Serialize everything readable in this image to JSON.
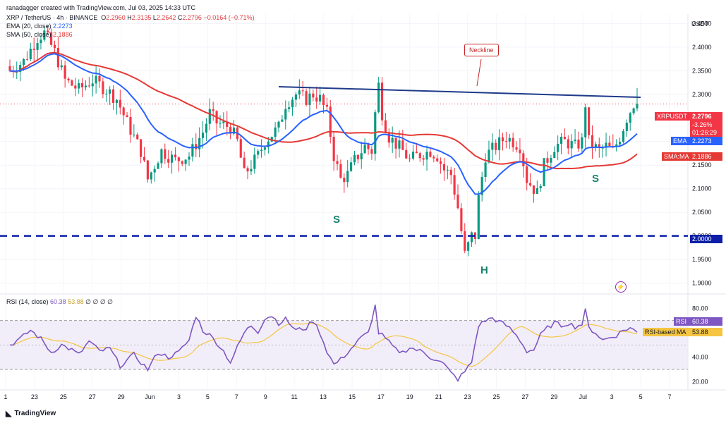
{
  "header": {
    "line1": "ranadagger created with TradingView.com, Jul 03, 2025 14:33 UTC",
    "symbol_line": "XRP / TetherUS · 4h · BINANCE",
    "ohlc": {
      "o_label": "O",
      "o": "2.2960",
      "h_label": "H",
      "h": "2.3135",
      "l_label": "L",
      "l": "2.2642",
      "c_label": "C",
      "c": "2.2796",
      "change": "−0.0164 (−0.71%)"
    },
    "ema_label": "EMA (20, close)",
    "ema_value": "2.2273",
    "sma_label": "SMA (50, close)",
    "sma_value": "2.1886",
    "rsi_label": "RSI (14, close)",
    "rsi_value": "60.38",
    "rsi_ma_value": "53.88",
    "rsi_extra": "∅ ∅ ∅ ∅"
  },
  "currency": "USDT",
  "price_tag": {
    "symbol": "XRPUSDT",
    "price": "2.2796",
    "change": "-3.26%",
    "countdown": "01:26:29"
  },
  "ema_tag": {
    "label": "EMA",
    "value": "2.2273"
  },
  "sma_tag": {
    "label": "SMA:MA",
    "value": "2.1886"
  },
  "level_tag": "2.0000",
  "rsi_tag": {
    "label": "RSI",
    "value": "60.38"
  },
  "rsi_ma_tag": {
    "label": "RSI-based MA",
    "value": "53.88"
  },
  "annotations": {
    "neckline": "Neckline",
    "s_left": "S",
    "head": "H",
    "s_right": "S"
  },
  "brand": "TradingView",
  "colors": {
    "up": "#089981",
    "down": "#f23645",
    "ema": "#2962ff",
    "sma": "#e53935",
    "rsi": "#7e57c2",
    "rsi_ma": "#f5c542",
    "neckline": "#1e3a8a",
    "level": "#0d1fa8",
    "annotation": "#1a7f6e"
  },
  "chart_data": {
    "type": "line",
    "title": "XRP / TetherUS · 4h · BINANCE",
    "price_axis": {
      "min": 1.88,
      "max": 2.47,
      "ticks": [
        "2.4500",
        "2.4000",
        "2.3500",
        "2.3000",
        "2.2500",
        "2.2000",
        "2.1500",
        "2.1000",
        "2.0500",
        "2.0000",
        "1.9500",
        "1.9000"
      ]
    },
    "rsi_axis": {
      "min": 15,
      "max": 90,
      "ticks": [
        "80.00",
        "60.00",
        "40.00",
        "20.00"
      ],
      "bands": [
        70,
        30
      ]
    },
    "x_ticks": [
      "1",
      "23",
      "25",
      "27",
      "29",
      "Jun",
      "3",
      "5",
      "7",
      "9",
      "11",
      "13",
      "15",
      "17",
      "19",
      "21",
      "23",
      "25",
      "27",
      "29",
      "Jul",
      "3",
      "5",
      "7"
    ],
    "price_anchors": [
      [
        0,
        2.35
      ],
      [
        4,
        2.37
      ],
      [
        8,
        2.42
      ],
      [
        10,
        2.43
      ],
      [
        13,
        2.39
      ],
      [
        16,
        2.33
      ],
      [
        20,
        2.31
      ],
      [
        24,
        2.33
      ],
      [
        28,
        2.31
      ],
      [
        31,
        2.29
      ],
      [
        34,
        2.24
      ],
      [
        38,
        2.18
      ],
      [
        40,
        2.12
      ],
      [
        44,
        2.18
      ],
      [
        48,
        2.16
      ],
      [
        52,
        2.17
      ],
      [
        56,
        2.22
      ],
      [
        58,
        2.26
      ],
      [
        60,
        2.24
      ],
      [
        64,
        2.23
      ],
      [
        66,
        2.2
      ],
      [
        68,
        2.13
      ],
      [
        70,
        2.15
      ],
      [
        72,
        2.17
      ],
      [
        74,
        2.2
      ],
      [
        78,
        2.23
      ],
      [
        80,
        2.28
      ],
      [
        83,
        2.3
      ],
      [
        86,
        2.29
      ],
      [
        88,
        2.3
      ],
      [
        90,
        2.29
      ],
      [
        92,
        2.26
      ],
      [
        94,
        2.17
      ],
      [
        96,
        2.12
      ],
      [
        98,
        2.13
      ],
      [
        100,
        2.16
      ],
      [
        103,
        2.19
      ],
      [
        105,
        2.18
      ],
      [
        106,
        2.26
      ],
      [
        107,
        2.32
      ],
      [
        108,
        2.26
      ],
      [
        110,
        2.21
      ],
      [
        114,
        2.18
      ],
      [
        116,
        2.16
      ],
      [
        118,
        2.17
      ],
      [
        122,
        2.18
      ],
      [
        124,
        2.17
      ],
      [
        126,
        2.14
      ],
      [
        128,
        2.13
      ],
      [
        130,
        2.06
      ],
      [
        132,
        1.96
      ],
      [
        134,
        2.0
      ],
      [
        135,
        2.0
      ],
      [
        136,
        2.08
      ],
      [
        138,
        2.17
      ],
      [
        141,
        2.19
      ],
      [
        144,
        2.21
      ],
      [
        146,
        2.2
      ],
      [
        148,
        2.19
      ],
      [
        150,
        2.12
      ],
      [
        153,
        2.09
      ],
      [
        155,
        2.15
      ],
      [
        158,
        2.19
      ],
      [
        161,
        2.2
      ],
      [
        164,
        2.19
      ],
      [
        166,
        2.2
      ],
      [
        167,
        2.28
      ],
      [
        168,
        2.2
      ],
      [
        171,
        2.18
      ],
      [
        173,
        2.19
      ],
      [
        175,
        2.18
      ],
      [
        177,
        2.21
      ],
      [
        179,
        2.25
      ],
      [
        181,
        2.28
      ],
      [
        182,
        2.2796
      ]
    ],
    "price_tick": {
      "h": 2.3135,
      "l": 2.2642,
      "c": 2.2796
    },
    "rsi_anchors": [
      [
        0,
        50
      ],
      [
        3,
        55
      ],
      [
        6,
        62
      ],
      [
        9,
        55
      ],
      [
        12,
        44
      ],
      [
        15,
        50
      ],
      [
        18,
        46
      ],
      [
        20,
        42
      ],
      [
        23,
        53
      ],
      [
        26,
        45
      ],
      [
        29,
        47
      ],
      [
        32,
        33
      ],
      [
        36,
        42
      ],
      [
        40,
        30
      ],
      [
        43,
        44
      ],
      [
        46,
        40
      ],
      [
        49,
        44
      ],
      [
        52,
        54
      ],
      [
        54,
        74
      ],
      [
        56,
        62
      ],
      [
        58,
        58
      ],
      [
        60,
        52
      ],
      [
        62,
        45
      ],
      [
        64,
        36
      ],
      [
        66,
        48
      ],
      [
        68,
        60
      ],
      [
        70,
        66
      ],
      [
        72,
        61
      ],
      [
        74,
        72
      ],
      [
        76,
        74
      ],
      [
        78,
        68
      ],
      [
        80,
        71
      ],
      [
        83,
        62
      ],
      [
        86,
        64
      ],
      [
        88,
        70
      ],
      [
        90,
        60
      ],
      [
        92,
        45
      ],
      [
        94,
        34
      ],
      [
        96,
        38
      ],
      [
        98,
        44
      ],
      [
        100,
        50
      ],
      [
        102,
        56
      ],
      [
        104,
        60
      ],
      [
        106,
        82
      ],
      [
        107,
        60
      ],
      [
        108,
        58
      ],
      [
        110,
        52
      ],
      [
        112,
        46
      ],
      [
        114,
        44
      ],
      [
        116,
        48
      ],
      [
        118,
        46
      ],
      [
        120,
        44
      ],
      [
        122,
        40
      ],
      [
        124,
        38
      ],
      [
        126,
        34
      ],
      [
        128,
        27
      ],
      [
        130,
        22
      ],
      [
        132,
        28
      ],
      [
        134,
        36
      ],
      [
        136,
        66
      ],
      [
        138,
        70
      ],
      [
        140,
        72
      ],
      [
        142,
        69
      ],
      [
        144,
        66
      ],
      [
        146,
        61
      ],
      [
        148,
        54
      ],
      [
        150,
        45
      ],
      [
        152,
        46
      ],
      [
        154,
        58
      ],
      [
        156,
        64
      ],
      [
        158,
        68
      ],
      [
        160,
        66
      ],
      [
        162,
        68
      ],
      [
        164,
        65
      ],
      [
        166,
        67
      ],
      [
        167,
        78
      ],
      [
        168,
        64
      ],
      [
        170,
        60
      ],
      [
        172,
        54
      ],
      [
        174,
        56
      ],
      [
        176,
        58
      ],
      [
        178,
        62
      ],
      [
        180,
        64
      ],
      [
        182,
        60.38
      ]
    ],
    "bar_count": 183
  }
}
